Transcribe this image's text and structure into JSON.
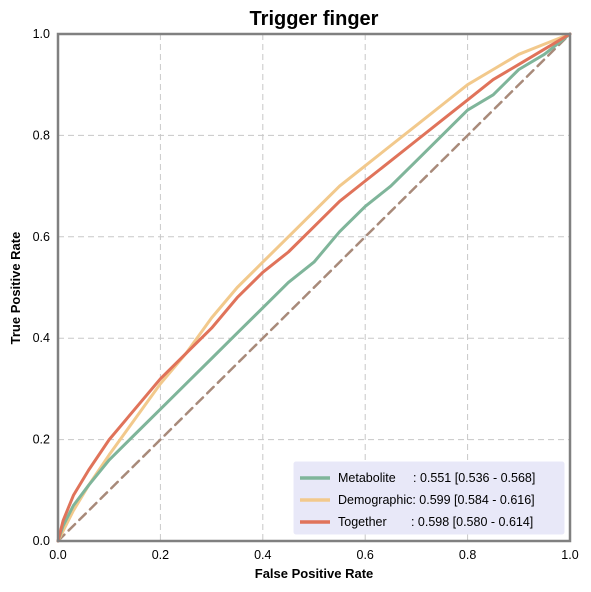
{
  "chart_data": {
    "type": "line",
    "title": "Trigger finger",
    "xlabel": "False Positive Rate",
    "ylabel": "True Positive Rate",
    "xlim": [
      0,
      1
    ],
    "ylim": [
      0,
      1
    ],
    "xticks": [
      "0.0",
      "0.2",
      "0.4",
      "0.6",
      "0.8",
      "1.0"
    ],
    "yticks": [
      "0.0",
      "0.2",
      "0.4",
      "0.6",
      "0.8",
      "1.0"
    ],
    "grid": true,
    "legend_position": "bottom-right",
    "series": [
      {
        "name": "Metabolite",
        "legend_label": "Metabolite     : 0.551 [0.536 - 0.568]",
        "color": "#7fb59a",
        "x": [
          0,
          0.01,
          0.03,
          0.06,
          0.1,
          0.15,
          0.2,
          0.25,
          0.3,
          0.35,
          0.4,
          0.45,
          0.5,
          0.55,
          0.6,
          0.65,
          0.7,
          0.75,
          0.8,
          0.85,
          0.9,
          0.95,
          1.0
        ],
        "y": [
          0,
          0.03,
          0.07,
          0.11,
          0.16,
          0.21,
          0.26,
          0.31,
          0.36,
          0.41,
          0.46,
          0.51,
          0.55,
          0.61,
          0.66,
          0.7,
          0.75,
          0.8,
          0.85,
          0.88,
          0.93,
          0.96,
          1.0
        ]
      },
      {
        "name": "Demographic",
        "legend_label": "Demographic: 0.599 [0.584 - 0.616]",
        "color": "#f2c98c",
        "x": [
          0,
          0.01,
          0.03,
          0.06,
          0.1,
          0.15,
          0.2,
          0.25,
          0.3,
          0.35,
          0.4,
          0.45,
          0.5,
          0.55,
          0.6,
          0.65,
          0.7,
          0.75,
          0.8,
          0.85,
          0.9,
          0.95,
          1.0
        ],
        "y": [
          0,
          0.02,
          0.06,
          0.11,
          0.17,
          0.24,
          0.31,
          0.37,
          0.44,
          0.5,
          0.55,
          0.6,
          0.65,
          0.7,
          0.74,
          0.78,
          0.82,
          0.86,
          0.9,
          0.93,
          0.96,
          0.98,
          1.0
        ]
      },
      {
        "name": "Together",
        "legend_label": "Together       : 0.598 [0.580 - 0.614]",
        "color": "#e0735a",
        "x": [
          0,
          0.01,
          0.03,
          0.06,
          0.1,
          0.15,
          0.2,
          0.25,
          0.3,
          0.35,
          0.4,
          0.45,
          0.5,
          0.55,
          0.6,
          0.65,
          0.7,
          0.75,
          0.8,
          0.85,
          0.9,
          0.95,
          1.0
        ],
        "y": [
          0,
          0.04,
          0.09,
          0.14,
          0.2,
          0.26,
          0.32,
          0.37,
          0.42,
          0.48,
          0.53,
          0.57,
          0.62,
          0.67,
          0.71,
          0.75,
          0.79,
          0.83,
          0.87,
          0.91,
          0.94,
          0.97,
          1.0
        ]
      },
      {
        "name": "Chance",
        "color": "#a88a7a",
        "style": "dashed",
        "x": [
          0,
          1
        ],
        "y": [
          0,
          1
        ]
      }
    ]
  },
  "colors": {
    "legend_background": "#e8e8f8",
    "frame": "#808080",
    "grid": "#c8c8c8"
  }
}
